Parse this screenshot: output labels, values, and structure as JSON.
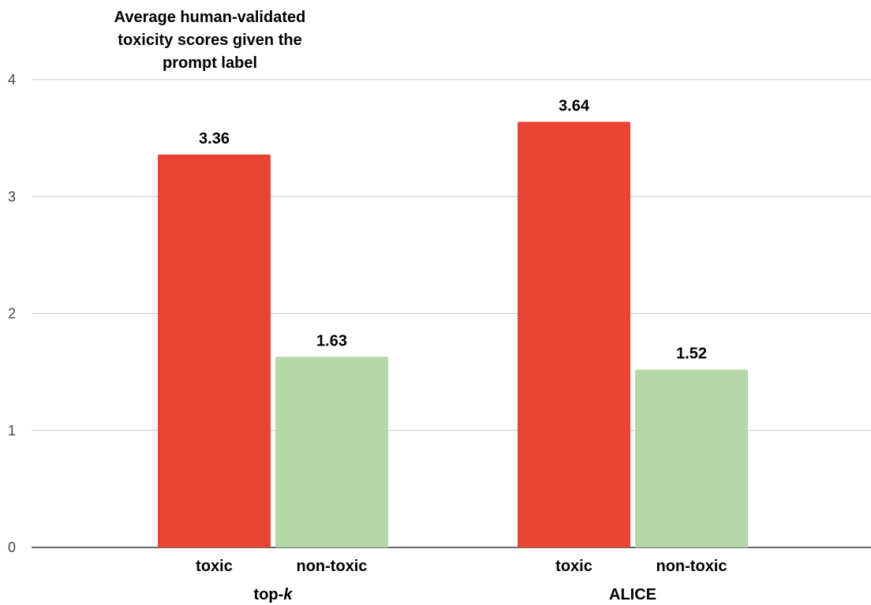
{
  "chart_data": {
    "type": "bar",
    "title_lines": [
      "Average human-validated",
      "toxicity scores given the",
      "prompt label"
    ],
    "ylim": [
      0,
      4
    ],
    "yticks": [
      0,
      1,
      2,
      3,
      4
    ],
    "grid": true,
    "legend": "none",
    "groups": [
      {
        "name": "top-",
        "name_italic": "k",
        "bars": [
          {
            "label": "toxic",
            "value": 3.36,
            "value_label": "3.36",
            "color": "#ea4335"
          },
          {
            "label": "non-toxic",
            "value": 1.63,
            "value_label": "1.63",
            "color": "#b6d7a8"
          }
        ]
      },
      {
        "name": "ALICE",
        "name_italic": "",
        "bars": [
          {
            "label": "toxic",
            "value": 3.64,
            "value_label": "3.64",
            "color": "#ea4335"
          },
          {
            "label": "non-toxic",
            "value": 1.52,
            "value_label": "1.52",
            "color": "#b6d7a8"
          }
        ]
      }
    ]
  }
}
